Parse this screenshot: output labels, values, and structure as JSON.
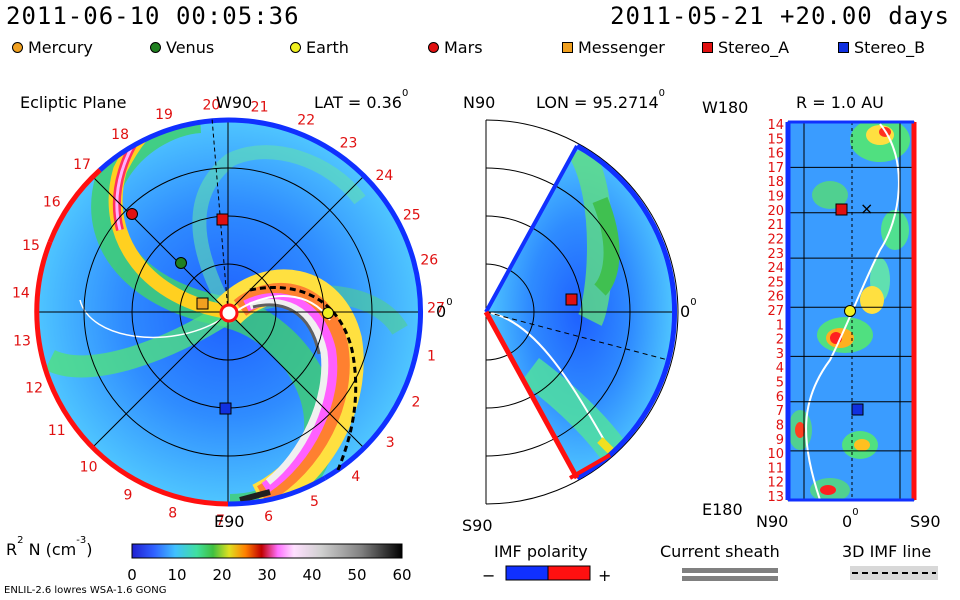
{
  "header": {
    "date_left": "2011-06-10 00:05:36",
    "date_right": "2011-05-21 +20.00 days"
  },
  "legend": [
    {
      "label": "Mercury",
      "color": "#f0a020",
      "shape": "circle"
    },
    {
      "label": "Venus",
      "color": "#208020",
      "shape": "circle"
    },
    {
      "label": "Earth",
      "color": "#f0f020",
      "shape": "circle"
    },
    {
      "label": "Mars",
      "color": "#e01010",
      "shape": "circle"
    },
    {
      "label": "Messenger",
      "color": "#f0a020",
      "shape": "square"
    },
    {
      "label": "Stereo_A",
      "color": "#e01010",
      "shape": "square"
    },
    {
      "label": "Stereo_B",
      "color": "#1030e0",
      "shape": "square"
    }
  ],
  "panel_ecliptic": {
    "title": "Ecliptic Plane",
    "top_label": "W90",
    "lat_label": "LAT = 0.36",
    "lat_sup": "0",
    "right_label": "0",
    "right_sup": "0",
    "bottom_label": "E90",
    "carrington_labels": [
      "20",
      "21",
      "22",
      "23",
      "24",
      "25",
      "26",
      "27",
      "1",
      "2",
      "3",
      "4",
      "5",
      "6",
      "7",
      "8",
      "9",
      "10",
      "11",
      "12",
      "13",
      "14",
      "15",
      "16",
      "17",
      "18",
      "19"
    ]
  },
  "panel_meridional": {
    "top_label": "N90",
    "lon_label": "LON = 95.2714",
    "lon_sup": "0",
    "right_label": "0",
    "right_sup": "0",
    "bottom_label": "S90"
  },
  "panel_latlon": {
    "title": "R = 1.0 AU",
    "top_left_label": "W180",
    "bottom_left_label": "E180",
    "x_labels": [
      "N90",
      "0",
      "S90"
    ],
    "x_sup": "0",
    "y_labels": [
      "14",
      "15",
      "16",
      "17",
      "18",
      "19",
      "20",
      "21",
      "22",
      "23",
      "24",
      "25",
      "26",
      "27",
      "1",
      "2",
      "3",
      "4",
      "5",
      "6",
      "7",
      "8",
      "9",
      "10",
      "11",
      "12",
      "13"
    ]
  },
  "colorbar": {
    "label": "R",
    "label_sup": "2",
    "label_rest": " N (cm",
    "label_exp": "-3",
    "label_end": ")",
    "ticks": [
      "0",
      "10",
      "20",
      "30",
      "40",
      "50",
      "60"
    ]
  },
  "imf_polarity": {
    "title": "IMF polarity",
    "minus": "−",
    "plus": "+"
  },
  "current_sheath": {
    "title": "Current sheath"
  },
  "imf_line": {
    "title": "3D IMF line"
  },
  "footer": {
    "left": "ENLIL-2.6 lowres WSA-1.6 GONG"
  },
  "chart_data": {
    "type": "heatmap",
    "colorbar_range": [
      0,
      60
    ],
    "colorbar_ticks": [
      0,
      10,
      20,
      30,
      40,
      50,
      60
    ],
    "ecliptic_latitude_deg": 0.36,
    "meridional_longitude_deg": 95.2714,
    "radius_au": 1.0
  },
  "colors": {
    "background_field": "#3aa0ff",
    "positive_polarity": "#ff1010",
    "negative_polarity": "#1030ff"
  }
}
